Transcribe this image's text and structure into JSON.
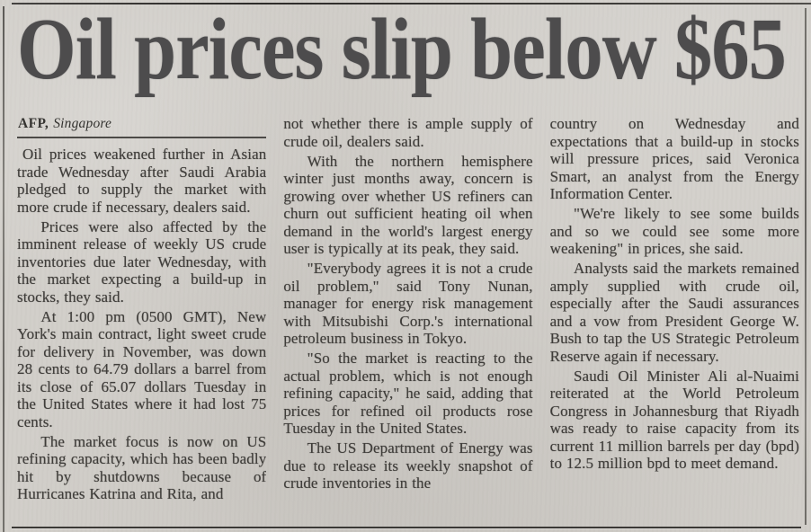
{
  "page": {
    "background_color": "#d1cec9",
    "ink_color": "#3f3d3a",
    "headline_color": "#4d4c4d",
    "rule_color": "#3b3936"
  },
  "article": {
    "headline": "Oil prices slip below $65",
    "byline": {
      "agency": "AFP,",
      "location": "Singapore"
    },
    "columns": [
      {
        "paragraphs": [
          "Oil prices weakened further in Asian trade Wednesday after Saudi Arabia pledged to supply the market with more crude if necessary, dealers said.",
          "Prices were also affected by the imminent release of weekly US crude inventories due later Wednesday, with the market expecting a build-up in stocks, they said.",
          "At 1:00 pm (0500 GMT), New York's main contract, light sweet crude for delivery in November, was down 28 cents to 64.79 dollars a barrel from its close of 65.07 dollars Tuesday in the United States where it had lost 75 cents.",
          "The market focus is now on US refining capacity, which has been badly hit by shutdowns because of Hurricanes Katrina and Rita, and"
        ]
      },
      {
        "paragraphs": [
          "not whether there is ample supply of crude oil, dealers said.",
          "With the northern hemisphere winter just months away, concern is growing over whether US refiners can churn out sufficient heating oil when demand in the world's largest energy user is typically at its peak, they said.",
          "\"Everybody agrees it is not a crude oil problem,\" said Tony Nunan, manager for energy risk management with Mitsubishi Corp.'s international petroleum business in Tokyo.",
          "\"So the market is reacting to the actual problem, which is not enough refining capacity,\" he said, adding that prices for refined oil products rose Tuesday in the United States.",
          "The US Department of Energy was due to release its weekly snapshot of crude inventories in the"
        ]
      },
      {
        "paragraphs": [
          "country on Wednesday and expectations that a build-up in stocks will pressure prices, said Veronica Smart, an analyst from the Energy Information Center.",
          "\"We're likely to see some builds and so we could see some more weakening\" in prices, she said.",
          "Analysts said the markets remained amply supplied with crude oil, especially after the Saudi assurances and a vow from President George W. Bush to tap the US Strategic Petroleum Reserve again if necessary.",
          "Saudi Oil Minister Ali al-Nuaimi reiterated at the World Petroleum Congress in Johannesburg that Riyadh was ready to raise capacity from its current 11 million barrels per day (bpd) to 12.5 million bpd to meet demand."
        ]
      }
    ]
  }
}
